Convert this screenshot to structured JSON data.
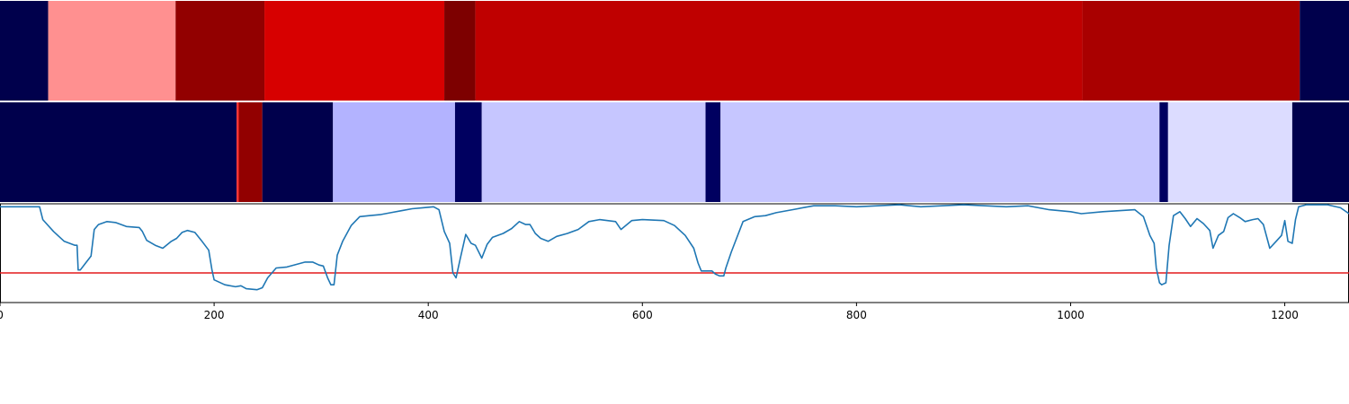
{
  "chart_data": {
    "type": "heatmap",
    "x_range": [
      0,
      1260
    ],
    "x_ticks": [
      0,
      200,
      400,
      600,
      800,
      1000,
      1200
    ],
    "x_tick_labels": [
      "0",
      "200",
      "400",
      "600",
      "800",
      "1000",
      "1200"
    ],
    "segment_tracks": [
      {
        "segments": [
          {
            "start": 0,
            "end": 45,
            "color": "#00004c"
          },
          {
            "start": 45,
            "end": 164,
            "color": "#ff9090"
          },
          {
            "start": 164,
            "end": 247,
            "color": "#920000"
          },
          {
            "start": 247,
            "end": 415,
            "color": "#d70000"
          },
          {
            "start": 415,
            "end": 444,
            "color": "#7d0000"
          },
          {
            "start": 444,
            "end": 1011,
            "color": "#bf0000"
          },
          {
            "start": 1011,
            "end": 1214,
            "color": "#a90000"
          },
          {
            "start": 1214,
            "end": 1260,
            "color": "#00004c"
          }
        ]
      },
      {
        "segments": [
          {
            "start": 0,
            "end": 221,
            "color": "#00004c"
          },
          {
            "start": 221,
            "end": 223,
            "color": "#ff3030"
          },
          {
            "start": 223,
            "end": 245,
            "color": "#920000"
          },
          {
            "start": 245,
            "end": 311,
            "color": "#00004c"
          },
          {
            "start": 311,
            "end": 425,
            "color": "#b3b3ff"
          },
          {
            "start": 425,
            "end": 450,
            "color": "#000060"
          },
          {
            "start": 450,
            "end": 659,
            "color": "#c6c6ff"
          },
          {
            "start": 659,
            "end": 673,
            "color": "#000060"
          },
          {
            "start": 673,
            "end": 1083,
            "color": "#c6c6ff"
          },
          {
            "start": 1083,
            "end": 1091,
            "color": "#000060"
          },
          {
            "start": 1091,
            "end": 1207,
            "color": "#dcdcff"
          },
          {
            "start": 1207,
            "end": 1260,
            "color": "#00004c"
          }
        ]
      }
    ],
    "line_panel": {
      "ylim": [
        0,
        1
      ],
      "threshold": 0.3,
      "threshold_color": "#e41a1c",
      "line_color": "#1f77b4",
      "series": [
        [
          0,
          0.97
        ],
        [
          20,
          0.97
        ],
        [
          37,
          0.97
        ],
        [
          40,
          0.84
        ],
        [
          50,
          0.72
        ],
        [
          60,
          0.62
        ],
        [
          70,
          0.58
        ],
        [
          72,
          0.58
        ],
        [
          73,
          0.33
        ],
        [
          75,
          0.33
        ],
        [
          80,
          0.4
        ],
        [
          85,
          0.47
        ],
        [
          88,
          0.74
        ],
        [
          92,
          0.79
        ],
        [
          100,
          0.82
        ],
        [
          108,
          0.81
        ],
        [
          118,
          0.77
        ],
        [
          130,
          0.76
        ],
        [
          133,
          0.72
        ],
        [
          137,
          0.63
        ],
        [
          145,
          0.58
        ],
        [
          152,
          0.55
        ],
        [
          160,
          0.62
        ],
        [
          165,
          0.65
        ],
        [
          170,
          0.71
        ],
        [
          175,
          0.73
        ],
        [
          182,
          0.71
        ],
        [
          188,
          0.63
        ],
        [
          195,
          0.53
        ],
        [
          198,
          0.33
        ],
        [
          200,
          0.23
        ],
        [
          210,
          0.18
        ],
        [
          220,
          0.16
        ],
        [
          225,
          0.17
        ],
        [
          230,
          0.14
        ],
        [
          240,
          0.13
        ],
        [
          245,
          0.15
        ],
        [
          250,
          0.25
        ],
        [
          258,
          0.35
        ],
        [
          268,
          0.36
        ],
        [
          278,
          0.39
        ],
        [
          285,
          0.41
        ],
        [
          292,
          0.41
        ],
        [
          298,
          0.38
        ],
        [
          302,
          0.37
        ],
        [
          306,
          0.25
        ],
        [
          309,
          0.18
        ],
        [
          312,
          0.18
        ],
        [
          315,
          0.48
        ],
        [
          320,
          0.62
        ],
        [
          328,
          0.78
        ],
        [
          336,
          0.87
        ],
        [
          345,
          0.88
        ],
        [
          355,
          0.89
        ],
        [
          365,
          0.91
        ],
        [
          375,
          0.93
        ],
        [
          385,
          0.95
        ],
        [
          395,
          0.96
        ],
        [
          405,
          0.97
        ],
        [
          410,
          0.94
        ],
        [
          415,
          0.72
        ],
        [
          420,
          0.6
        ],
        [
          423,
          0.3
        ],
        [
          426,
          0.25
        ],
        [
          430,
          0.45
        ],
        [
          435,
          0.69
        ],
        [
          440,
          0.6
        ],
        [
          444,
          0.58
        ],
        [
          450,
          0.45
        ],
        [
          455,
          0.59
        ],
        [
          460,
          0.66
        ],
        [
          470,
          0.7
        ],
        [
          478,
          0.75
        ],
        [
          485,
          0.82
        ],
        [
          491,
          0.79
        ],
        [
          495,
          0.79
        ],
        [
          500,
          0.7
        ],
        [
          505,
          0.65
        ],
        [
          512,
          0.62
        ],
        [
          520,
          0.67
        ],
        [
          530,
          0.7
        ],
        [
          540,
          0.74
        ],
        [
          550,
          0.82
        ],
        [
          560,
          0.84
        ],
        [
          575,
          0.82
        ],
        [
          580,
          0.74
        ],
        [
          590,
          0.83
        ],
        [
          600,
          0.84
        ],
        [
          620,
          0.83
        ],
        [
          630,
          0.78
        ],
        [
          640,
          0.68
        ],
        [
          648,
          0.55
        ],
        [
          652,
          0.4
        ],
        [
          655,
          0.32
        ],
        [
          660,
          0.32
        ],
        [
          665,
          0.32
        ],
        [
          668,
          0.29
        ],
        [
          672,
          0.27
        ],
        [
          676,
          0.27
        ],
        [
          678,
          0.35
        ],
        [
          683,
          0.51
        ],
        [
          688,
          0.65
        ],
        [
          694,
          0.82
        ],
        [
          705,
          0.87
        ],
        [
          715,
          0.88
        ],
        [
          725,
          0.91
        ],
        [
          740,
          0.94
        ],
        [
          760,
          0.98
        ],
        [
          780,
          0.98
        ],
        [
          800,
          0.97
        ],
        [
          820,
          0.98
        ],
        [
          840,
          0.99
        ],
        [
          860,
          0.97
        ],
        [
          880,
          0.98
        ],
        [
          900,
          0.99
        ],
        [
          920,
          0.98
        ],
        [
          940,
          0.97
        ],
        [
          960,
          0.98
        ],
        [
          980,
          0.94
        ],
        [
          1000,
          0.92
        ],
        [
          1010,
          0.9
        ],
        [
          1030,
          0.92
        ],
        [
          1045,
          0.93
        ],
        [
          1060,
          0.94
        ],
        [
          1068,
          0.87
        ],
        [
          1074,
          0.68
        ],
        [
          1078,
          0.6
        ],
        [
          1080,
          0.35
        ],
        [
          1083,
          0.2
        ],
        [
          1085,
          0.18
        ],
        [
          1089,
          0.2
        ],
        [
          1092,
          0.58
        ],
        [
          1096,
          0.88
        ],
        [
          1102,
          0.92
        ],
        [
          1107,
          0.85
        ],
        [
          1112,
          0.77
        ],
        [
          1118,
          0.85
        ],
        [
          1124,
          0.8
        ],
        [
          1130,
          0.73
        ],
        [
          1133,
          0.55
        ],
        [
          1138,
          0.68
        ],
        [
          1143,
          0.72
        ],
        [
          1147,
          0.86
        ],
        [
          1152,
          0.9
        ],
        [
          1158,
          0.86
        ],
        [
          1163,
          0.82
        ],
        [
          1170,
          0.84
        ],
        [
          1175,
          0.85
        ],
        [
          1180,
          0.79
        ],
        [
          1186,
          0.55
        ],
        [
          1192,
          0.62
        ],
        [
          1197,
          0.68
        ],
        [
          1200,
          0.83
        ],
        [
          1203,
          0.62
        ],
        [
          1207,
          0.6
        ],
        [
          1210,
          0.84
        ],
        [
          1213,
          0.97
        ],
        [
          1220,
          0.99
        ],
        [
          1240,
          0.99
        ],
        [
          1252,
          0.96
        ],
        [
          1260,
          0.9
        ]
      ]
    }
  }
}
